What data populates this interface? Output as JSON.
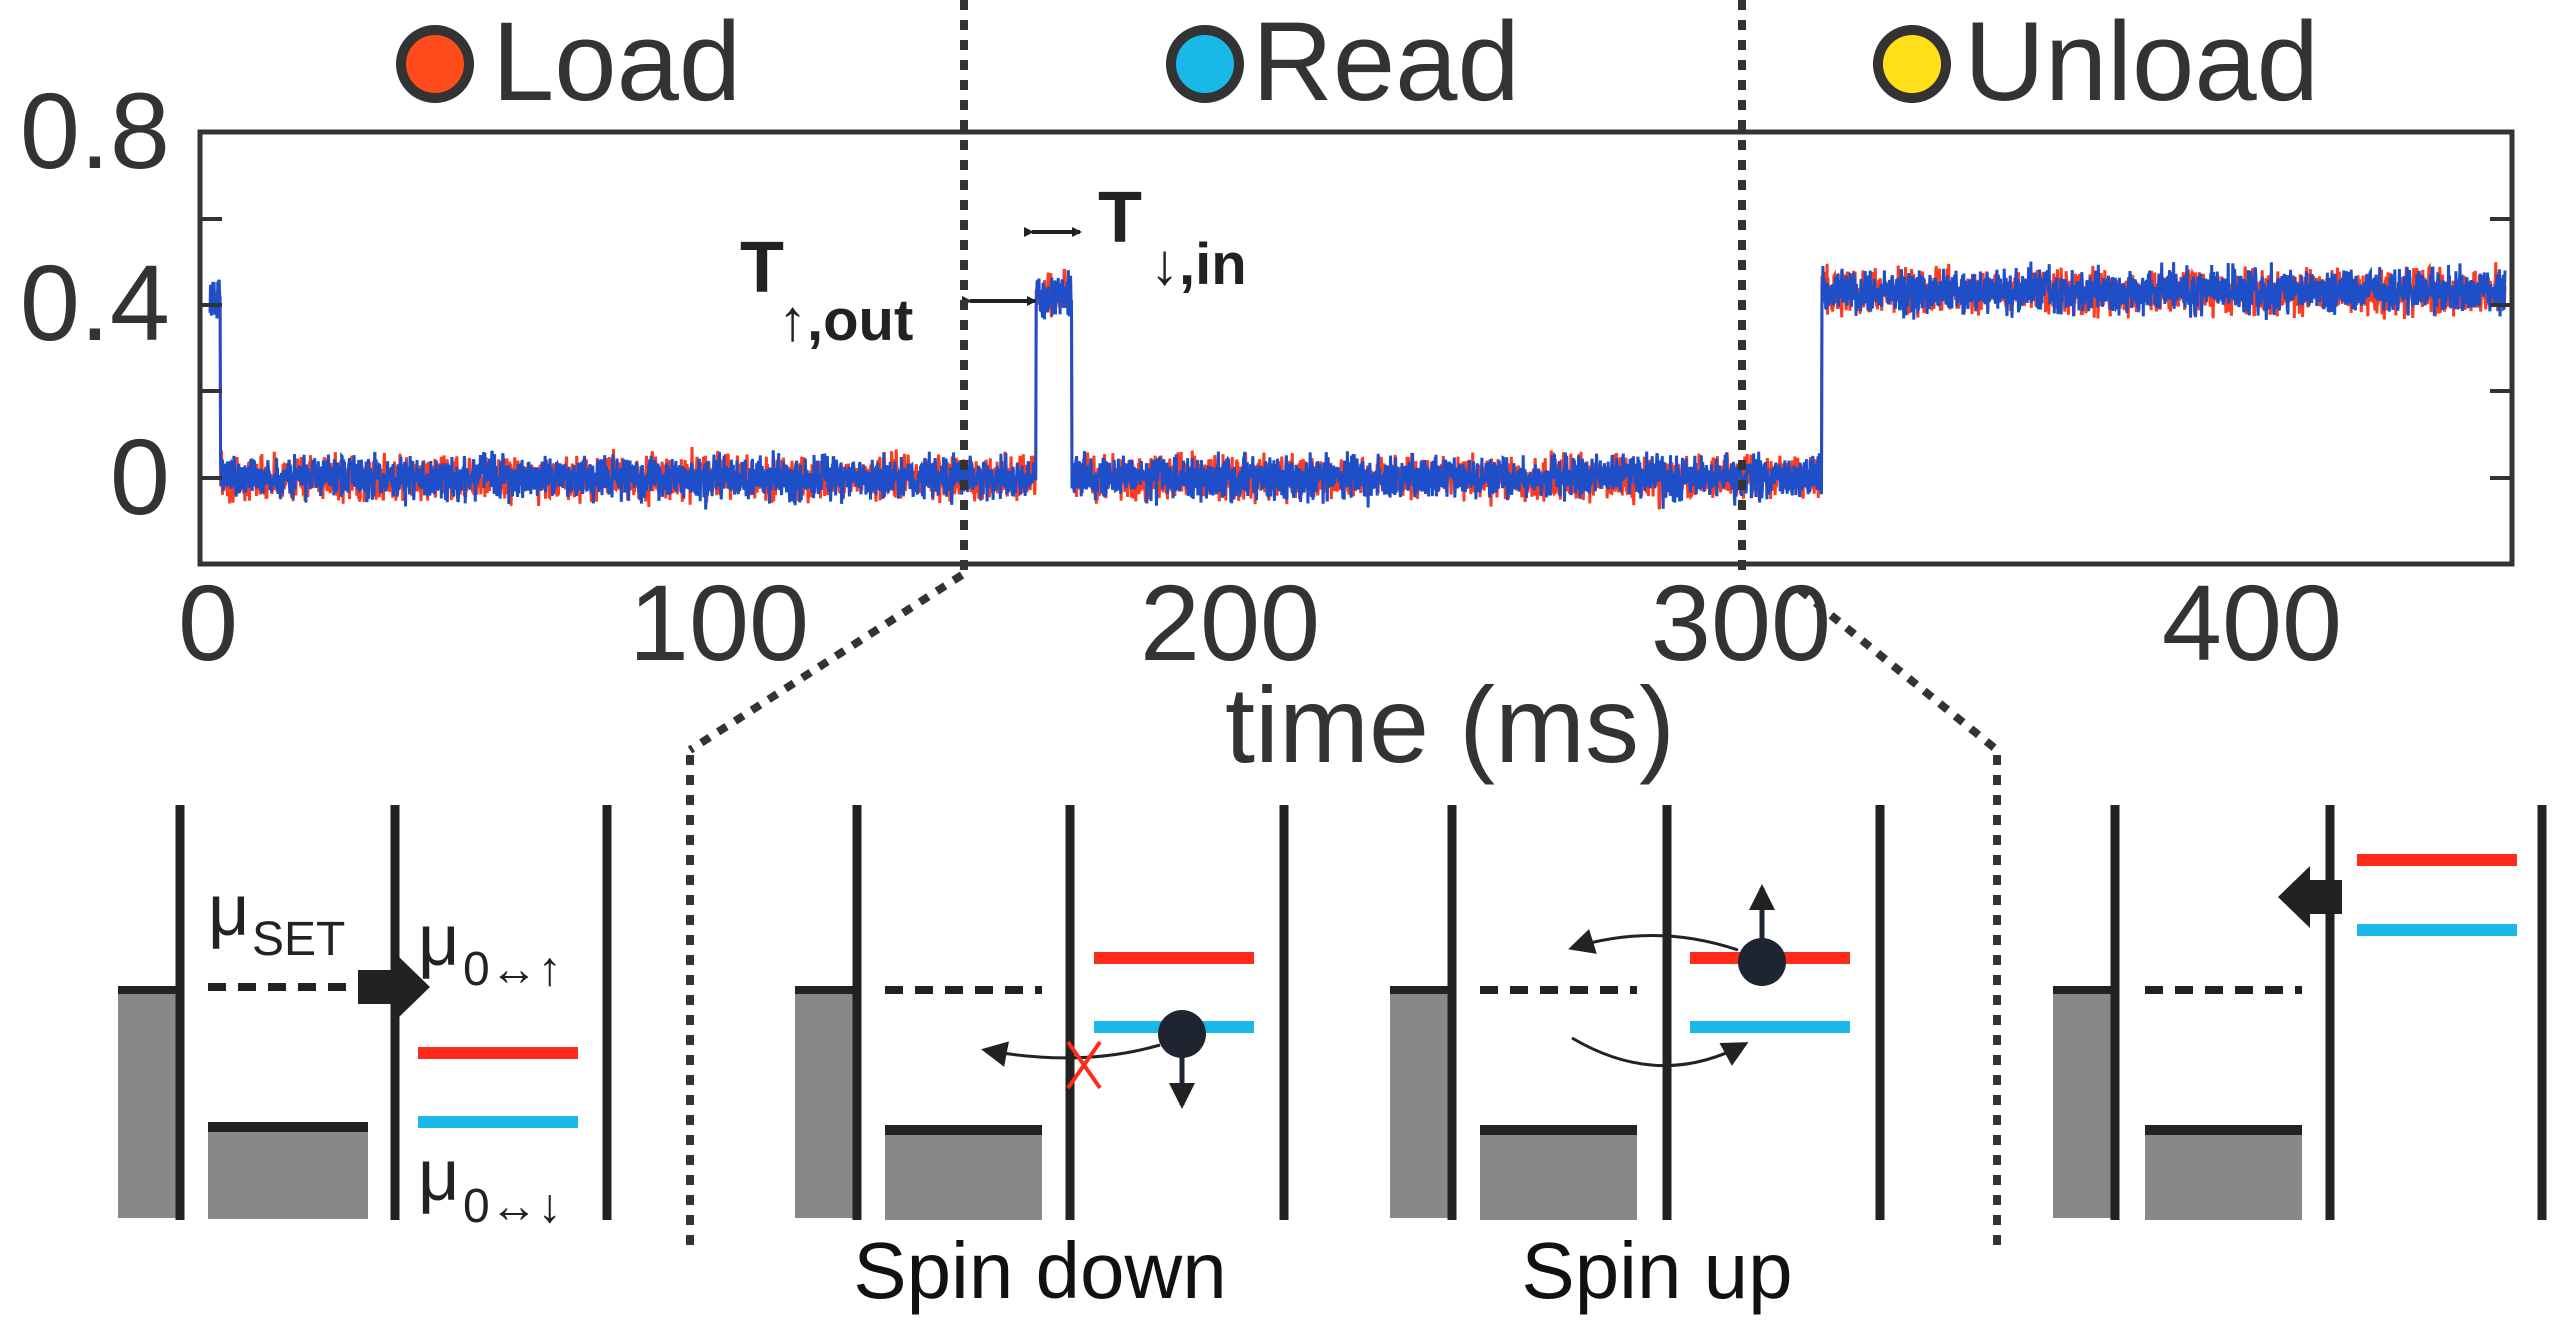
{
  "phases": [
    {
      "label": "Load",
      "color": "#ff4a1c"
    },
    {
      "label": "Read",
      "color": "#1ab8e8"
    },
    {
      "label": "Unload",
      "color": "#ffe01a"
    }
  ],
  "plot": {
    "xlabel": "time (ms)",
    "xticks": [
      "0",
      "100",
      "200",
      "300",
      "400"
    ],
    "yticks": [
      "0.8",
      "0.4",
      "0"
    ],
    "xlim": [
      0,
      450
    ],
    "ylim": [
      -0.2,
      0.8
    ],
    "phase_boundaries_ms": [
      148,
      300
    ],
    "trace_colors": [
      "#ff3b1f",
      "#1f4fc8"
    ],
    "trace_levels": [
      {
        "from_ms": 0,
        "to_ms": 2,
        "level": 0.42
      },
      {
        "from_ms": 2,
        "to_ms": 162,
        "level": 0.0
      },
      {
        "from_ms": 162,
        "to_ms": 169,
        "level": 0.42
      },
      {
        "from_ms": 169,
        "to_ms": 316,
        "level": 0.0
      },
      {
        "from_ms": 316,
        "to_ms": 450,
        "level": 0.43
      }
    ],
    "annotations": {
      "t_out": {
        "main": "T",
        "sub": "↑,out"
      },
      "t_in": {
        "main": "T",
        "sub": "↓,in"
      }
    }
  },
  "diagrams": {
    "load": {
      "mu_set": {
        "main": "μ",
        "sub": "SET"
      },
      "mu_up": {
        "main": "μ",
        "sub": "0↔↑"
      },
      "mu_down": {
        "main": "μ",
        "sub": "0↔↓"
      }
    },
    "spin_down": {
      "caption": "Spin down"
    },
    "spin_up": {
      "caption": "Spin up"
    }
  },
  "level_colors": {
    "upper": "#ff2a1a",
    "lower": "#1ab8e8",
    "reservoir": "#888888"
  }
}
